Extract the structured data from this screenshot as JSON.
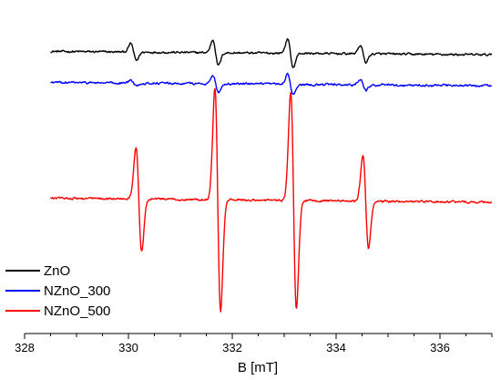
{
  "chart_data": {
    "type": "line",
    "title": "",
    "xlabel": "B [mT]",
    "ylabel": "",
    "xlim": [
      328,
      337
    ],
    "ylim": [
      -10,
      1.5
    ],
    "x_ticks": [
      328,
      330,
      332,
      334,
      336
    ],
    "y_axis_visible": false,
    "grid": false,
    "legend": {
      "placement": "bottom-left"
    },
    "series": [
      {
        "name": "ZnO",
        "color": "#000000",
        "baseline": 0,
        "start": 328.5,
        "end": 337,
        "noise": 0.06,
        "slope": -0.12,
        "peaks": [
          {
            "x": 330.1,
            "amplitude": 0.3
          },
          {
            "x": 331.68,
            "amplitude": 0.45
          },
          {
            "x": 333.12,
            "amplitude": 0.5
          },
          {
            "x": 334.52,
            "amplitude": 0.3
          }
        ]
      },
      {
        "name": "NZnO_300",
        "color": "#0000FF",
        "baseline": -1.1,
        "start": 328.5,
        "end": 337,
        "noise": 0.06,
        "slope": -0.12,
        "peaks": [
          {
            "x": 330.1,
            "amplitude": 0.1
          },
          {
            "x": 331.68,
            "amplitude": 0.3
          },
          {
            "x": 333.12,
            "amplitude": 0.35
          },
          {
            "x": 334.52,
            "amplitude": 0.2
          }
        ]
      },
      {
        "name": "NZnO_500",
        "color": "#FF0000",
        "baseline": -5.2,
        "start": 328.5,
        "end": 337,
        "noise": 0.06,
        "slope": -0.15,
        "peaks": [
          {
            "x": 330.2,
            "amplitude": 1.85
          },
          {
            "x": 331.72,
            "amplitude": 3.95
          },
          {
            "x": 333.18,
            "amplitude": 3.85
          },
          {
            "x": 334.57,
            "amplitude": 1.65
          }
        ]
      }
    ]
  }
}
